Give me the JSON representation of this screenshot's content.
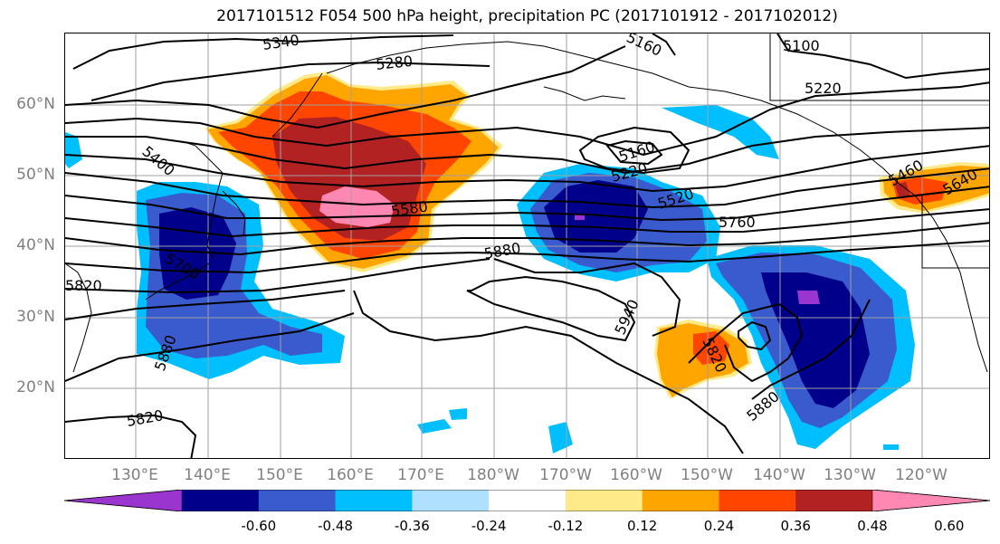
{
  "title": "2017101512 F054 500 hPa height, precipitation PC (2017101912 - 2017102012)",
  "lat_labels": [
    "60°N",
    "50°N",
    "40°N",
    "30°N",
    "20°N"
  ],
  "lon_labels": [
    "130°E",
    "140°E",
    "150°E",
    "160°E",
    "170°E",
    "180°W",
    "170°W",
    "160°W",
    "150°W",
    "140°W",
    "130°W",
    "120°W"
  ],
  "colorbar": {
    "ticks": [
      "-0.60",
      "-0.48",
      "-0.36",
      "-0.24",
      "-0.12",
      "0.12",
      "0.24",
      "0.36",
      "0.48",
      "0.60"
    ],
    "colors": [
      "#9a35d0",
      "#00008b",
      "#3a5bcd",
      "#00bfff",
      "#b0e0ff",
      "#ffffff",
      "#ffea8a",
      "#ffa500",
      "#ff4500",
      "#b22222",
      "#ff88b3"
    ]
  },
  "contour_labels": [
    "5340",
    "5280",
    "5160",
    "5100",
    "5220",
    "5400",
    "5580",
    "5220",
    "5160",
    "5520",
    "5760",
    "5880",
    "5700",
    "5820",
    "5940",
    "5880",
    "5820",
    "5880",
    "5820",
    "5460",
    "5640"
  ],
  "colors": {
    "negative_strong": "#00008b",
    "positive_strong": "#b22222",
    "contour": "#000000"
  }
}
